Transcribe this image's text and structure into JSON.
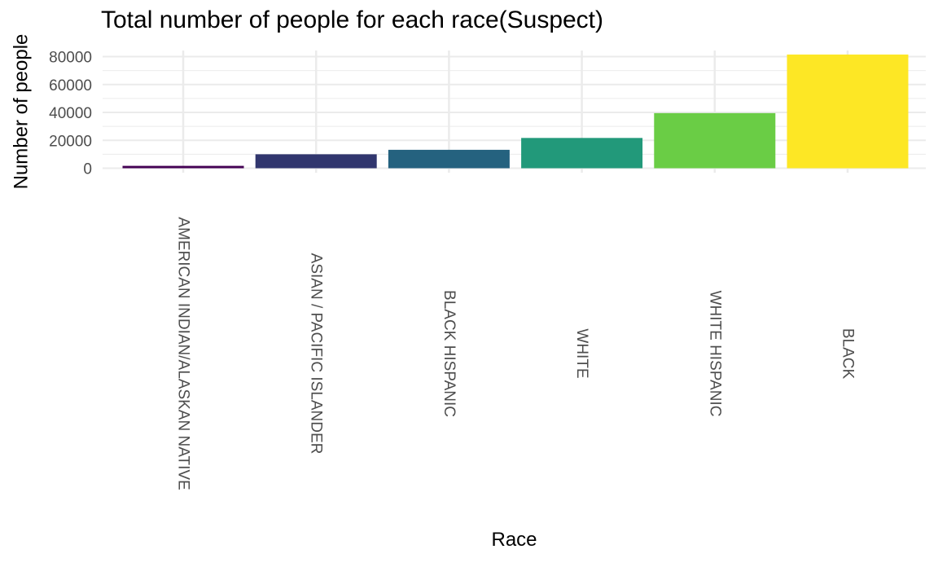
{
  "chart_data": {
    "type": "bar",
    "title": "Total number of people for each race(Suspect)",
    "xlabel": "Race",
    "ylabel": "Number of people",
    "categories": [
      "AMERICAN INDIAN/ALASKAN NATIVE",
      "ASIAN / PACIFIC ISLANDER",
      "BLACK HISPANIC",
      "WHITE",
      "WHITE HISPANIC",
      "BLACK"
    ],
    "values": [
      1700,
      10000,
      13200,
      21700,
      39500,
      81500
    ],
    "colors": [
      "#440154",
      "#31366e",
      "#25627f",
      "#22997a",
      "#6acd45",
      "#fde725"
    ],
    "yticks": [
      0,
      20000,
      40000,
      60000,
      80000
    ],
    "ylim": [
      0,
      82000
    ],
    "grid": true,
    "legend": "none"
  }
}
